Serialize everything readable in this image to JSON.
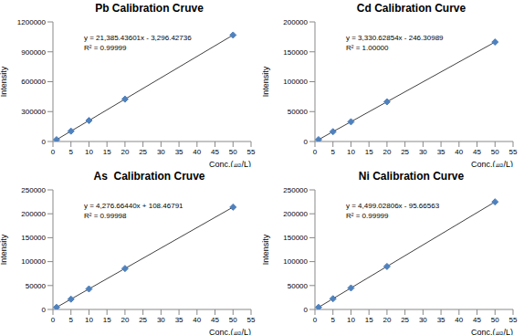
{
  "chart_data": [
    {
      "type": "line",
      "title": "Pb Calibration Cruve",
      "x_label": "Conc.(㎍/L)",
      "y_label": "Intensity",
      "annotations": [
        "y = 21,385.43601x - 3,296.42736",
        "R² = 0.99999"
      ],
      "x": [
        1,
        5,
        10,
        20,
        50
      ],
      "series": [
        {
          "name": "Pb",
          "color": "#4f81bd",
          "values": [
            18000,
            104000,
            210000,
            425000,
            1068000
          ],
          "marker": "diamond",
          "line_style": "solid"
        }
      ],
      "xlim": [
        0,
        55
      ],
      "xticks": [
        0,
        5,
        10,
        15,
        20,
        25,
        30,
        35,
        40,
        45,
        50,
        55
      ],
      "ylim": [
        0,
        1200000
      ],
      "yticks": [
        0,
        300000,
        600000,
        900000,
        1200000
      ],
      "grid": false
    },
    {
      "type": "line",
      "title": "Cd Calibration Curve",
      "x_label": "Conc.(㎍/L)",
      "y_label": "Intensity",
      "annotations": [
        "y = 3,330.62854x - 246.30989",
        "R² = 1.00000"
      ],
      "x": [
        1,
        5,
        10,
        20,
        50
      ],
      "series": [
        {
          "name": "Cd",
          "color": "#4f81bd",
          "values": [
            3100,
            16400,
            33000,
            66400,
            166300
          ],
          "marker": "diamond",
          "line_style": "solid"
        }
      ],
      "xlim": [
        0,
        55
      ],
      "xticks": [
        0,
        5,
        10,
        15,
        20,
        25,
        30,
        35,
        40,
        45,
        50,
        55
      ],
      "ylim": [
        0,
        200000
      ],
      "yticks": [
        0,
        50000,
        100000,
        150000,
        200000
      ],
      "grid": false
    },
    {
      "type": "line",
      "title": "As  Calibration Cruve",
      "x_label": "Conc.(㎍/L)",
      "y_label": "Intensity",
      "annotations": [
        "y = 4,276.66440x + 108.46791",
        "R² = 0.99998"
      ],
      "x": [
        1,
        5,
        10,
        20,
        50
      ],
      "series": [
        {
          "name": "As",
          "color": "#4f81bd",
          "values": [
            4400,
            21500,
            42900,
            85600,
            213900
          ],
          "marker": "diamond",
          "line_style": "solid"
        }
      ],
      "xlim": [
        0,
        55
      ],
      "xticks": [
        0,
        5,
        10,
        15,
        20,
        25,
        30,
        35,
        40,
        45,
        50,
        55
      ],
      "ylim": [
        0,
        250000
      ],
      "yticks": [
        0,
        50000,
        100000,
        150000,
        200000,
        250000
      ],
      "grid": false
    },
    {
      "type": "line",
      "title": "Ni Calibration Curve",
      "x_label": "Conc.(㎍/L)",
      "y_label": "Intensity",
      "annotations": [
        "y = 4,499.02806x - 95.66563",
        "R² = 0.99999"
      ],
      "x": [
        1,
        5,
        10,
        20,
        50
      ],
      "series": [
        {
          "name": "Ni",
          "color": "#4f81bd",
          "values": [
            4400,
            22400,
            44900,
            89900,
            224900
          ],
          "marker": "diamond",
          "line_style": "solid"
        }
      ],
      "xlim": [
        0,
        55
      ],
      "xticks": [
        0,
        5,
        10,
        15,
        20,
        25,
        30,
        35,
        40,
        45,
        50,
        55
      ],
      "ylim": [
        0,
        250000
      ],
      "yticks": [
        0,
        50000,
        100000,
        150000,
        200000,
        250000
      ],
      "grid": false
    }
  ]
}
